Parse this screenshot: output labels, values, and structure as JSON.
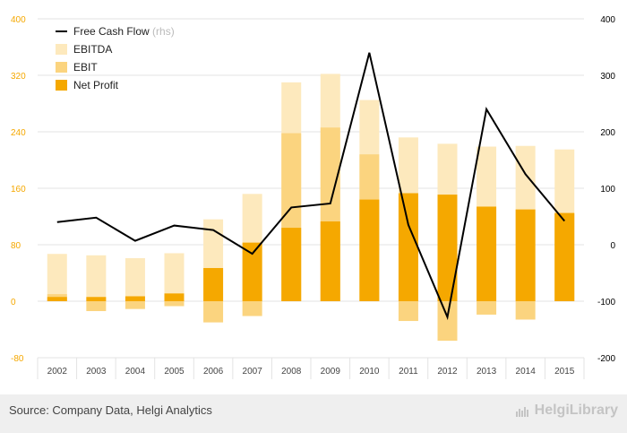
{
  "chart_data": {
    "type": "bar",
    "categories": [
      "2002",
      "2003",
      "2004",
      "2005",
      "2006",
      "2007",
      "2008",
      "2009",
      "2010",
      "2011",
      "2012",
      "2013",
      "2014",
      "2015"
    ],
    "series": [
      {
        "name": "EBITDA",
        "kind": "bar",
        "axis": "left",
        "color": "#fde9bd",
        "values": [
          67,
          65,
          61,
          68,
          116,
          152,
          310,
          322,
          285,
          232,
          223,
          219,
          220,
          215
        ]
      },
      {
        "name": "EBIT",
        "kind": "bar",
        "axis": "left",
        "color": "#fbd47f",
        "values": [
          10,
          -14,
          -11,
          -7,
          -30,
          -21,
          238,
          246,
          208,
          -28,
          -56,
          -19,
          -26,
          124
        ]
      },
      {
        "name": "Net Profit",
        "kind": "bar",
        "axis": "left",
        "color": "#f5a800",
        "values": [
          6,
          6,
          7,
          11,
          47,
          83,
          104,
          113,
          144,
          153,
          151,
          134,
          130,
          125
        ]
      },
      {
        "name": "Free Cash Flow",
        "suffix": "(rhs)",
        "kind": "line",
        "axis": "right",
        "color": "#000000",
        "values": [
          40,
          48,
          7,
          34,
          26,
          -16,
          66,
          73,
          340,
          35,
          -128,
          240,
          125,
          42
        ]
      }
    ],
    "left_axis": {
      "ylim": [
        -80,
        400
      ],
      "ticks": [
        "-80",
        "0",
        "80",
        "160",
        "240",
        "320",
        "400"
      ],
      "color": "#f5a800"
    },
    "right_axis": {
      "ylim": [
        -200,
        400
      ],
      "ticks": [
        "-200",
        "-100",
        "0",
        "100",
        "200",
        "300",
        "400"
      ],
      "color": "#000000"
    },
    "xlabel": "",
    "ylabel": "",
    "grid": true,
    "legend_position": "top-left"
  },
  "footer": {
    "source": "Source: Company Data, Helgi Analytics",
    "brand": "HelgiLibrary"
  }
}
